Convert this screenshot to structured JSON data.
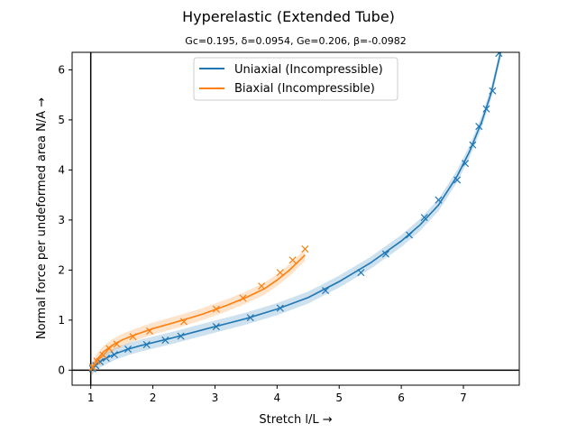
{
  "chart_data": {
    "type": "line",
    "title": "Hyperelastic (Extended Tube)",
    "subtitle": "Gc=0.195, δ=0.0954, Ge=0.206, β=-0.0982",
    "xlabel": "Stretch l/L  →",
    "ylabel": "Normal force per undeformed area N/A  →",
    "xlim": [
      0.7,
      7.9
    ],
    "ylim": [
      -0.3,
      6.35
    ],
    "xticks": [
      1,
      2,
      3,
      4,
      5,
      6,
      7
    ],
    "yticks": [
      0,
      1,
      2,
      3,
      4,
      5,
      6
    ],
    "grid": false,
    "legend_position": "top-center",
    "zero_lines": true,
    "series": [
      {
        "name": "Uniaxial (Incompressible)",
        "color": "#1f77b4",
        "band_halfwidth": 0.12,
        "fit": {
          "x": [
            1.0,
            1.1,
            1.2,
            1.4,
            1.6,
            1.8,
            2.0,
            2.3,
            2.6,
            3.0,
            3.5,
            4.0,
            4.5,
            5.0,
            5.5,
            6.0,
            6.3,
            6.6,
            6.9,
            7.1,
            7.3,
            7.45,
            7.6
          ],
          "y": [
            0.0,
            0.13,
            0.21,
            0.33,
            0.42,
            0.49,
            0.55,
            0.64,
            0.74,
            0.87,
            1.03,
            1.22,
            1.45,
            1.77,
            2.14,
            2.58,
            2.9,
            3.3,
            3.88,
            4.37,
            4.98,
            5.55,
            6.35
          ]
        },
        "markers": {
          "x": [
            1.03,
            1.08,
            1.15,
            1.25,
            1.38,
            1.6,
            1.9,
            2.2,
            2.45,
            3.02,
            3.57,
            4.05,
            4.78,
            5.35,
            5.75,
            6.13,
            6.37,
            6.6,
            6.9,
            7.03,
            7.15,
            7.25,
            7.37,
            7.47,
            7.57
          ],
          "y": [
            0.03,
            0.09,
            0.17,
            0.24,
            0.31,
            0.42,
            0.51,
            0.6,
            0.68,
            0.87,
            1.05,
            1.24,
            1.59,
            1.95,
            2.32,
            2.7,
            3.05,
            3.4,
            3.8,
            4.13,
            4.5,
            4.87,
            5.22,
            5.58,
            6.33
          ]
        }
      },
      {
        "name": "Biaxial (Incompressible)",
        "color": "#ff7f0e",
        "band_halfwidth": 0.12,
        "fit": {
          "x": [
            1.0,
            1.05,
            1.1,
            1.2,
            1.35,
            1.5,
            1.7,
            2.0,
            2.4,
            2.8,
            3.2,
            3.5,
            3.8,
            4.0,
            4.2,
            4.35,
            4.45
          ],
          "y": [
            0.0,
            0.11,
            0.21,
            0.36,
            0.5,
            0.6,
            0.7,
            0.83,
            0.97,
            1.12,
            1.3,
            1.45,
            1.63,
            1.8,
            2.0,
            2.18,
            2.3
          ]
        },
        "markers": {
          "x": [
            1.03,
            1.1,
            1.2,
            1.3,
            1.42,
            1.68,
            1.95,
            2.5,
            3.02,
            3.45,
            3.75,
            4.05,
            4.25,
            4.45
          ],
          "y": [
            0.06,
            0.18,
            0.3,
            0.43,
            0.52,
            0.67,
            0.78,
            0.97,
            1.22,
            1.44,
            1.68,
            1.95,
            2.2,
            2.42
          ]
        }
      }
    ]
  }
}
